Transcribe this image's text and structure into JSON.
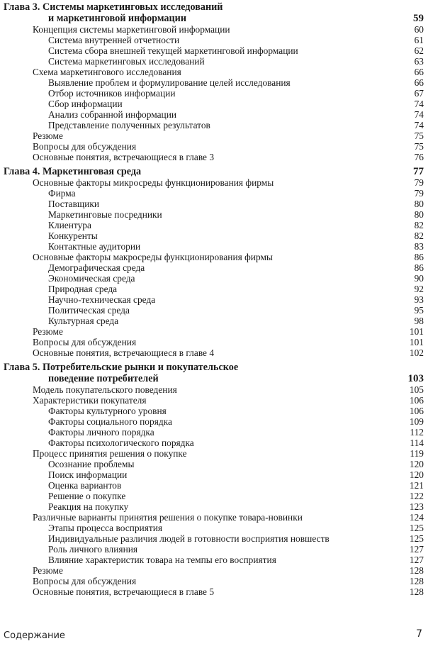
{
  "chapters": [
    {
      "title_line1": "Глава 3. Системы маркетинговых исследований",
      "title_line2": "и маркетинговой информации",
      "page": "59",
      "entries": [
        {
          "text": "Концепция системы маркетинговой информации",
          "page": "60",
          "level": 1
        },
        {
          "text": "Система внутренней отчетности",
          "page": "61",
          "level": 2
        },
        {
          "text": "Система сбора внешней текущей маркетинговой информации",
          "page": "62",
          "level": 2
        },
        {
          "text": "Система маркетинговых исследований",
          "page": "63",
          "level": 2
        },
        {
          "text": "Схема маркетингового исследования",
          "page": "66",
          "level": 1
        },
        {
          "text": "Выявление проблем и формулирование целей исследования",
          "page": "66",
          "level": 2
        },
        {
          "text": "Отбор источников информации",
          "page": "67",
          "level": 2
        },
        {
          "text": "Сбор информации",
          "page": "74",
          "level": 2
        },
        {
          "text": "Анализ собранной информации",
          "page": "74",
          "level": 2
        },
        {
          "text": "Представление полученных результатов",
          "page": "74",
          "level": 2
        },
        {
          "text": "Резюме",
          "page": "75",
          "level": 1
        },
        {
          "text": "Вопросы для обсуждения",
          "page": "75",
          "level": 1
        },
        {
          "text": "Основные понятия, встречающиеся в главе 3",
          "page": "76",
          "level": 1
        }
      ]
    },
    {
      "title_line1": "Глава 4. Маркетинговая среда",
      "title_line2": "",
      "page": "77",
      "entries": [
        {
          "text": "Основные факторы микросреды функционирования фирмы",
          "page": "79",
          "level": 1
        },
        {
          "text": "Фирма",
          "page": "79",
          "level": 2
        },
        {
          "text": "Поставщики",
          "page": "80",
          "level": 2
        },
        {
          "text": "Маркетинговые посредники",
          "page": "80",
          "level": 2
        },
        {
          "text": "Клиентура",
          "page": "82",
          "level": 2
        },
        {
          "text": "Конкуренты",
          "page": "82",
          "level": 2
        },
        {
          "text": "Контактные аудитории",
          "page": "83",
          "level": 2
        },
        {
          "text": "Основные факторы макросреды функционирования фирмы",
          "page": "86",
          "level": 1
        },
        {
          "text": "Демографическая среда",
          "page": "86",
          "level": 2
        },
        {
          "text": "Экономическая среда",
          "page": "90",
          "level": 2
        },
        {
          "text": "Природная среда",
          "page": "92",
          "level": 2
        },
        {
          "text": "Научно-техническая среда",
          "page": "93",
          "level": 2
        },
        {
          "text": "Политическая среда",
          "page": "95",
          "level": 2
        },
        {
          "text": "Культурная среда",
          "page": "98",
          "level": 2
        },
        {
          "text": "Резюме",
          "page": "101",
          "level": 1
        },
        {
          "text": "Вопросы для обсуждения",
          "page": "101",
          "level": 1
        },
        {
          "text": "Основные понятия, встречающиеся в главе 4",
          "page": "102",
          "level": 1
        }
      ]
    },
    {
      "title_line1": "Глава 5. Потребительские рынки и покупательское",
      "title_line2": "поведение потребителей",
      "page": "103",
      "entries": [
        {
          "text": "Модель покупательского поведения",
          "page": "105",
          "level": 1
        },
        {
          "text": "Характеристики покупателя",
          "page": "106",
          "level": 1
        },
        {
          "text": "Факторы культурного уровня",
          "page": "106",
          "level": 2
        },
        {
          "text": "Факторы социального порядка",
          "page": "109",
          "level": 2
        },
        {
          "text": "Факторы личного порядка",
          "page": "112",
          "level": 2
        },
        {
          "text": "Факторы психологического порядка",
          "page": "114",
          "level": 2
        },
        {
          "text": "Процесс принятия решения о покупке",
          "page": "119",
          "level": 1
        },
        {
          "text": "Осознание проблемы",
          "page": "120",
          "level": 2
        },
        {
          "text": "Поиск информации",
          "page": "120",
          "level": 2
        },
        {
          "text": "Оценка вариантов",
          "page": "121",
          "level": 2
        },
        {
          "text": "Решение о покупке",
          "page": "122",
          "level": 2
        },
        {
          "text": "Реакция на покупку",
          "page": "123",
          "level": 2
        },
        {
          "text": "Различные варианты принятия решения о покупке товара-новинки",
          "page": "124",
          "level": 1
        },
        {
          "text": "Этапы процесса восприятия",
          "page": "125",
          "level": 2
        },
        {
          "text": "Индивидуальные различия людей в готовности восприятия новшеств",
          "page": "125",
          "level": 2
        },
        {
          "text": "Роль личного влияния",
          "page": "127",
          "level": 2
        },
        {
          "text": "Влияние характеристик товара на темпы его восприятия",
          "page": "127",
          "level": 2
        },
        {
          "text": "Резюме",
          "page": "128",
          "level": 1
        },
        {
          "text": "Вопросы для обсуждения",
          "page": "128",
          "level": 1
        },
        {
          "text": "Основные понятия, встречающиеся в главе 5",
          "page": "128",
          "level": 1
        }
      ]
    }
  ],
  "footer": {
    "section": "Содержание",
    "page_number": "7"
  }
}
